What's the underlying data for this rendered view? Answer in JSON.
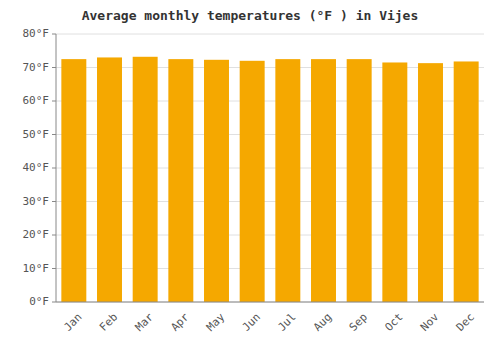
{
  "chart_data": {
    "type": "bar",
    "title": "Average monthly temperatures (°F ) in Vijes",
    "categories": [
      "Jan",
      "Feb",
      "Mar",
      "Apr",
      "May",
      "Jun",
      "Jul",
      "Aug",
      "Sep",
      "Oct",
      "Nov",
      "Dec"
    ],
    "values": [
      72.5,
      73.0,
      73.2,
      72.5,
      72.3,
      72.0,
      72.5,
      72.5,
      72.5,
      71.5,
      71.3,
      71.8
    ],
    "color": "#F5A800",
    "ylim": [
      0,
      80
    ],
    "yticks": [
      {
        "value": 0,
        "label": "0°F"
      },
      {
        "value": 10,
        "label": "10°F"
      },
      {
        "value": 20,
        "label": "20°F"
      },
      {
        "value": 30,
        "label": "30°F"
      },
      {
        "value": 40,
        "label": "40°F"
      },
      {
        "value": 50,
        "label": "50°F"
      },
      {
        "value": 60,
        "label": "60°F"
      },
      {
        "value": 70,
        "label": "70°F"
      },
      {
        "value": 80,
        "label": "80°F"
      }
    ],
    "grid": true
  }
}
